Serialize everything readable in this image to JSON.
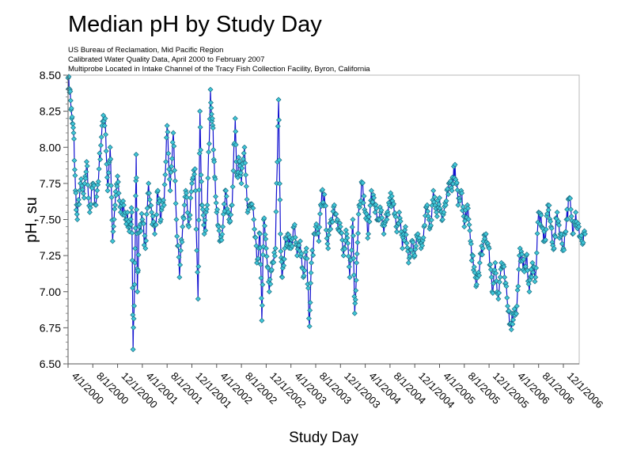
{
  "chart_data": {
    "type": "line",
    "title": "Median pH by Study Day",
    "subtitles": [
      "US Bureau of Reclamation, Mid Pacific Region",
      "Calibrated Water Quality Data, April 2000 to February 2007",
      "Multiprobe Located in Intake Channel of the Tracy Fish Collection Facility, Byron, California"
    ],
    "xlabel": "Study Day",
    "ylabel": "pH, su",
    "ylim": [
      6.5,
      8.5
    ],
    "y_ticks": [
      "6.50",
      "6.75",
      "7.00",
      "7.25",
      "7.50",
      "7.75",
      "8.00",
      "8.25",
      "8.50"
    ],
    "y_tick_values": [
      6.5,
      6.75,
      7.0,
      7.25,
      7.5,
      7.75,
      8.0,
      8.25,
      8.5
    ],
    "x_ticks": [
      "4/1/2000",
      "8/1/2000",
      "12/1/2000",
      "4/1/2001",
      "8/1/2001",
      "12/1/2001",
      "4/1/2002",
      "8/1/2002",
      "12/1/2002",
      "4/1/2003",
      "8/1/2003",
      "12/1/2003",
      "4/1/2004",
      "8/1/2004",
      "12/1/2004",
      "4/1/2005",
      "8/1/2005",
      "12/1/2005",
      "4/1/2006",
      "8/1/2006",
      "12/1/2006"
    ],
    "x_range_months": [
      0,
      84.5
    ],
    "grid": false,
    "legend": "none",
    "series": [
      {
        "name": "Median pH",
        "x_unit": "months since 4/1/2000",
        "line_color": "#1010d0",
        "marker_color": "#40c8d8",
        "marker_edge": "#1a6a80",
        "marker": "diamond",
        "anchors": [
          [
            0.0,
            8.48
          ],
          [
            0.3,
            8.4
          ],
          [
            0.6,
            8.2
          ],
          [
            0.9,
            8.1
          ],
          [
            1.2,
            7.7
          ],
          [
            1.5,
            7.5
          ],
          [
            2.0,
            7.75
          ],
          [
            2.6,
            7.65
          ],
          [
            3.0,
            7.9
          ],
          [
            3.5,
            7.55
          ],
          [
            4.0,
            7.75
          ],
          [
            4.5,
            7.6
          ],
          [
            5.0,
            7.85
          ],
          [
            5.5,
            8.15
          ],
          [
            6.0,
            8.2
          ],
          [
            6.4,
            7.7
          ],
          [
            6.8,
            8.0
          ],
          [
            7.2,
            7.35
          ],
          [
            7.6,
            7.6
          ],
          [
            8.0,
            7.8
          ],
          [
            8.5,
            7.55
          ],
          [
            9.0,
            7.6
          ],
          [
            9.5,
            7.5
          ],
          [
            10.0,
            7.45
          ],
          [
            10.3,
            7.55
          ],
          [
            10.5,
            6.6
          ],
          [
            10.8,
            7.2
          ],
          [
            11.0,
            7.95
          ],
          [
            11.2,
            7.0
          ],
          [
            11.5,
            7.45
          ],
          [
            12.0,
            7.5
          ],
          [
            12.5,
            7.3
          ],
          [
            13.0,
            7.75
          ],
          [
            13.5,
            7.55
          ],
          [
            14.0,
            7.4
          ],
          [
            14.5,
            7.7
          ],
          [
            15.0,
            7.5
          ],
          [
            15.5,
            7.6
          ],
          [
            16.0,
            8.15
          ],
          [
            16.5,
            7.7
          ],
          [
            17.0,
            8.1
          ],
          [
            17.5,
            7.5
          ],
          [
            18.0,
            7.1
          ],
          [
            18.5,
            7.45
          ],
          [
            19.0,
            7.7
          ],
          [
            19.5,
            7.45
          ],
          [
            20.0,
            7.75
          ],
          [
            20.5,
            7.85
          ],
          [
            21.0,
            6.95
          ],
          [
            21.3,
            8.25
          ],
          [
            21.6,
            7.6
          ],
          [
            22.0,
            7.4
          ],
          [
            22.5,
            7.6
          ],
          [
            23.0,
            8.4
          ],
          [
            23.3,
            8.2
          ],
          [
            23.6,
            7.9
          ],
          [
            24.0,
            7.55
          ],
          [
            24.5,
            7.35
          ],
          [
            25.0,
            7.45
          ],
          [
            25.5,
            7.7
          ],
          [
            26.0,
            7.5
          ],
          [
            26.5,
            7.6
          ],
          [
            27.0,
            8.2
          ],
          [
            27.3,
            7.8
          ],
          [
            27.6,
            7.9
          ],
          [
            28.0,
            7.75
          ],
          [
            28.5,
            8.0
          ],
          [
            29.0,
            7.55
          ],
          [
            29.5,
            7.6
          ],
          [
            30.0,
            7.5
          ],
          [
            30.5,
            7.2
          ],
          [
            31.0,
            7.4
          ],
          [
            31.3,
            6.8
          ],
          [
            31.6,
            7.5
          ],
          [
            32.0,
            7.3
          ],
          [
            32.5,
            7.0
          ],
          [
            33.0,
            7.2
          ],
          [
            33.5,
            7.3
          ],
          [
            34.0,
            8.33
          ],
          [
            34.3,
            7.4
          ],
          [
            34.6,
            7.1
          ],
          [
            35.0,
            7.3
          ],
          [
            35.5,
            7.4
          ],
          [
            36.0,
            7.3
          ],
          [
            36.5,
            7.45
          ],
          [
            37.0,
            7.25
          ],
          [
            37.5,
            7.35
          ],
          [
            38.0,
            7.1
          ],
          [
            38.5,
            7.3
          ],
          [
            39.0,
            6.76
          ],
          [
            39.3,
            7.2
          ],
          [
            40.0,
            7.45
          ],
          [
            40.5,
            7.35
          ],
          [
            41.0,
            7.7
          ],
          [
            41.5,
            7.6
          ],
          [
            42.0,
            7.3
          ],
          [
            42.5,
            7.5
          ],
          [
            43.0,
            7.6
          ],
          [
            43.5,
            7.5
          ],
          [
            44.0,
            7.45
          ],
          [
            44.5,
            7.25
          ],
          [
            45.0,
            7.4
          ],
          [
            45.5,
            7.1
          ],
          [
            46.0,
            7.5
          ],
          [
            46.3,
            6.85
          ],
          [
            46.6,
            7.2
          ],
          [
            47.0,
            7.6
          ],
          [
            47.5,
            7.75
          ],
          [
            48.0,
            7.55
          ],
          [
            48.5,
            7.4
          ],
          [
            49.0,
            7.7
          ],
          [
            49.5,
            7.6
          ],
          [
            50.0,
            7.5
          ],
          [
            50.5,
            7.55
          ],
          [
            51.0,
            7.4
          ],
          [
            51.5,
            7.5
          ],
          [
            52.0,
            7.65
          ],
          [
            52.5,
            7.6
          ],
          [
            53.0,
            7.45
          ],
          [
            53.5,
            7.55
          ],
          [
            54.0,
            7.3
          ],
          [
            54.5,
            7.45
          ],
          [
            55.0,
            7.2
          ],
          [
            55.5,
            7.35
          ],
          [
            56.0,
            7.25
          ],
          [
            56.5,
            7.4
          ],
          [
            57.0,
            7.3
          ],
          [
            57.5,
            7.45
          ],
          [
            58.0,
            7.6
          ],
          [
            58.5,
            7.45
          ],
          [
            59.0,
            7.7
          ],
          [
            59.5,
            7.55
          ],
          [
            60.0,
            7.65
          ],
          [
            60.5,
            7.5
          ],
          [
            61.0,
            7.6
          ],
          [
            61.5,
            7.75
          ],
          [
            62.0,
            7.7
          ],
          [
            62.5,
            7.88
          ],
          [
            63.0,
            7.6
          ],
          [
            63.5,
            7.7
          ],
          [
            64.0,
            7.45
          ],
          [
            64.5,
            7.6
          ],
          [
            65.0,
            7.35
          ],
          [
            65.5,
            7.15
          ],
          [
            66.0,
            7.05
          ],
          [
            66.5,
            7.2
          ],
          [
            67.0,
            7.3
          ],
          [
            67.5,
            7.4
          ],
          [
            68.0,
            7.3
          ],
          [
            68.5,
            7.0
          ],
          [
            69.0,
            7.2
          ],
          [
            69.5,
            6.95
          ],
          [
            70.0,
            7.2
          ],
          [
            70.5,
            7.1
          ],
          [
            71.0,
            6.9
          ],
          [
            71.5,
            6.78
          ],
          [
            72.0,
            6.85
          ],
          [
            72.5,
            6.9
          ],
          [
            73.0,
            7.3
          ],
          [
            73.5,
            7.15
          ],
          [
            74.0,
            7.25
          ],
          [
            74.5,
            7.0
          ],
          [
            75.0,
            7.2
          ],
          [
            75.5,
            7.1
          ],
          [
            76.0,
            7.55
          ],
          [
            76.5,
            7.45
          ],
          [
            77.0,
            7.35
          ],
          [
            77.5,
            7.6
          ],
          [
            78.0,
            7.45
          ],
          [
            78.5,
            7.3
          ],
          [
            79.0,
            7.55
          ],
          [
            79.5,
            7.4
          ],
          [
            80.0,
            7.3
          ],
          [
            80.5,
            7.5
          ],
          [
            81.0,
            7.65
          ],
          [
            81.5,
            7.4
          ],
          [
            82.0,
            7.55
          ],
          [
            82.5,
            7.45
          ],
          [
            83.0,
            7.35
          ],
          [
            83.5,
            7.4
          ]
        ]
      }
    ]
  }
}
